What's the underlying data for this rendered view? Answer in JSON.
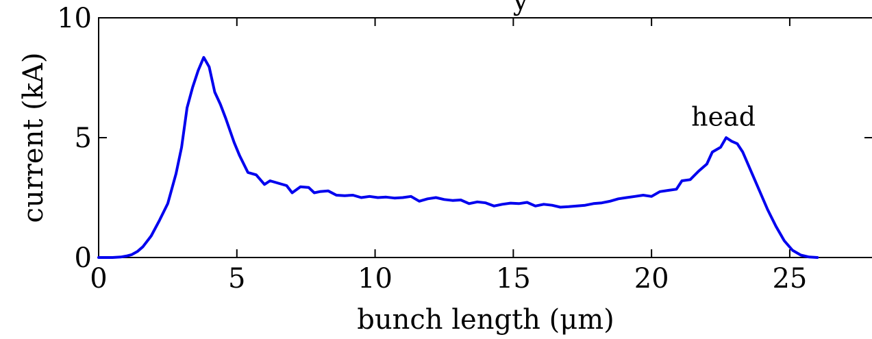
{
  "chart_data": {
    "type": "line",
    "title": "y",
    "xlabel": "bunch length (μm)",
    "ylabel": "current (kA)",
    "xlim": [
      0,
      28
    ],
    "ylim": [
      0,
      10
    ],
    "xticks": [
      0,
      5,
      10,
      15,
      20,
      25
    ],
    "yticks": [
      0,
      5,
      10
    ],
    "grid": false,
    "series_color": "#0000ee",
    "annotations": [
      {
        "text": "head",
        "x": 22.6,
        "y": 5.5
      }
    ],
    "series": [
      {
        "x": [
          0,
          0.5,
          0.8,
          1.0,
          1.2,
          1.4,
          1.6,
          1.9,
          2.2,
          2.5,
          2.8,
          3.0,
          3.2,
          3.4,
          3.6,
          3.8,
          4.0,
          4.2,
          4.4,
          4.6,
          4.9,
          5.1,
          5.4,
          5.7,
          6.0,
          6.2,
          6.5,
          6.8,
          7.0,
          7.3,
          7.6,
          7.8,
          8.0,
          8.3,
          8.6,
          8.9,
          9.2,
          9.5,
          9.8,
          10.1,
          10.4,
          10.7,
          11.0,
          11.3,
          11.6,
          11.9,
          12.2,
          12.5,
          12.8,
          13.1,
          13.4,
          13.7,
          14.0,
          14.3,
          14.6,
          14.9,
          15.2,
          15.5,
          15.8,
          16.1,
          16.4,
          16.7,
          17.0,
          17.3,
          17.6,
          17.9,
          18.2,
          18.5,
          18.8,
          19.1,
          19.4,
          19.7,
          20.0,
          20.3,
          20.6,
          20.9,
          21.1,
          21.4,
          21.7,
          22.0,
          22.2,
          22.5,
          22.7,
          22.9,
          23.1,
          23.3,
          23.6,
          23.9,
          24.2,
          24.5,
          24.8,
          25.1,
          25.4,
          25.7,
          26.0
        ],
        "values": [
          0.0,
          0.0,
          0.02,
          0.06,
          0.12,
          0.25,
          0.45,
          0.9,
          1.55,
          2.25,
          3.5,
          4.6,
          6.25,
          7.1,
          7.8,
          8.35,
          7.95,
          6.9,
          6.4,
          5.8,
          4.8,
          4.25,
          3.55,
          3.45,
          3.05,
          3.2,
          3.1,
          3.0,
          2.7,
          2.95,
          2.92,
          2.7,
          2.75,
          2.78,
          2.6,
          2.58,
          2.6,
          2.5,
          2.55,
          2.5,
          2.52,
          2.48,
          2.5,
          2.55,
          2.35,
          2.45,
          2.5,
          2.42,
          2.38,
          2.4,
          2.25,
          2.32,
          2.28,
          2.15,
          2.22,
          2.27,
          2.25,
          2.3,
          2.15,
          2.22,
          2.18,
          2.1,
          2.12,
          2.15,
          2.18,
          2.25,
          2.28,
          2.35,
          2.45,
          2.5,
          2.55,
          2.6,
          2.55,
          2.75,
          2.8,
          2.85,
          3.2,
          3.25,
          3.6,
          3.9,
          4.4,
          4.6,
          5.0,
          4.85,
          4.75,
          4.4,
          3.6,
          2.8,
          2.0,
          1.3,
          0.7,
          0.3,
          0.1,
          0.02,
          0.0
        ]
      }
    ]
  }
}
